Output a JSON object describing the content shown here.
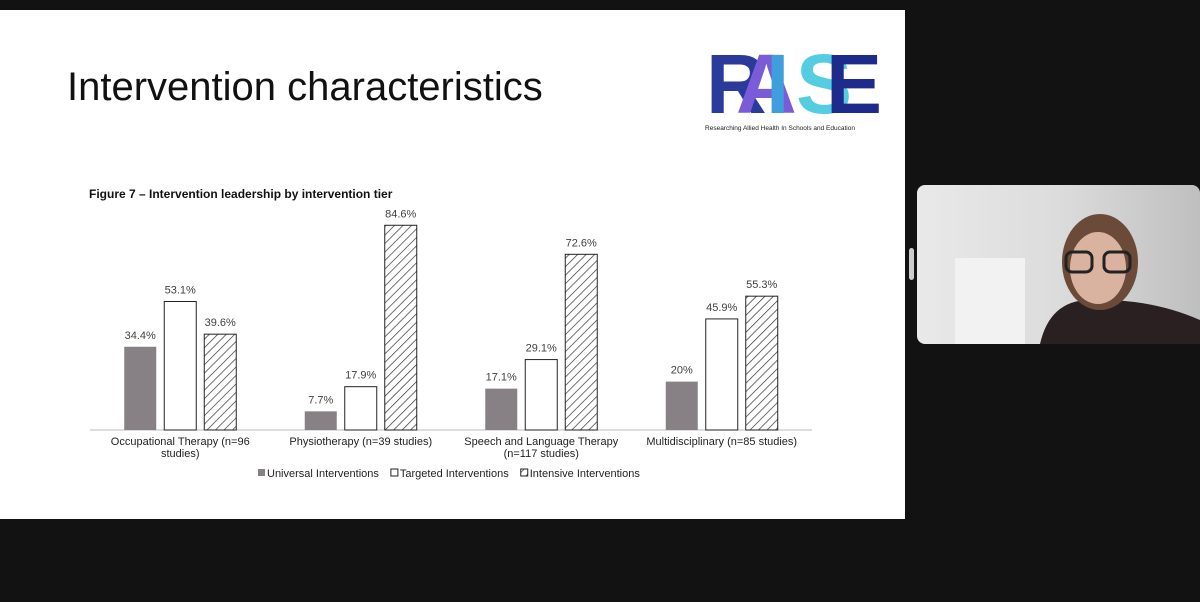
{
  "slide": {
    "title": "Intervention characteristics",
    "logo": {
      "letters": [
        "R",
        "A",
        "I",
        "S",
        "E"
      ],
      "letter_colors": [
        "#2b3b9c",
        "#7a5bd8",
        "#3f9edb",
        "#55cde0",
        "#1d2b8c"
      ],
      "subtitle": "Researching Allied Health In Schools and Education"
    }
  },
  "chart_data": {
    "type": "bar",
    "title": "Figure 7 – Intervention leadership by intervention tier",
    "categories": [
      "Occupational Therapy (n=96 studies)",
      "Physiotherapy (n=39 studies)",
      "Speech and Language Therapy (n=117 studies)",
      "Multidisciplinary (n=85 studies)"
    ],
    "series": [
      {
        "name": "Universal Interventions",
        "color": "#878185",
        "values": [
          34.4,
          7.7,
          17.1,
          20
        ],
        "value_labels": [
          "34.4%",
          "7.7%",
          "17.1%",
          "20%"
        ]
      },
      {
        "name": "Targeted Interventions",
        "color": "#ffffff",
        "values": [
          53.1,
          17.9,
          29.1,
          45.9
        ],
        "value_labels": [
          "53.1%",
          "17.9%",
          "29.1%",
          "45.9%"
        ]
      },
      {
        "name": "Intensive Interventions",
        "color": "#ffffff",
        "pattern": "hatch",
        "values": [
          39.6,
          84.6,
          72.6,
          55.3
        ],
        "value_labels": [
          "39.6%",
          "84.6%",
          "72.6%",
          "55.3%"
        ]
      }
    ],
    "ylim": [
      0,
      100
    ],
    "grid": false,
    "legend": "bottom"
  }
}
